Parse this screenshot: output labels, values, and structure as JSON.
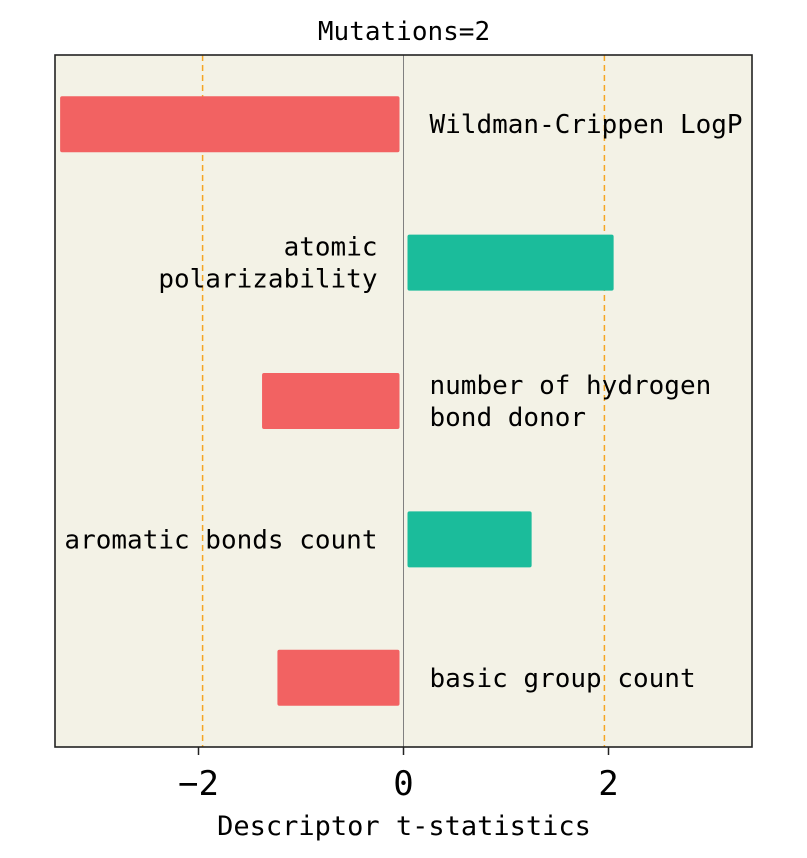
{
  "chart_data": {
    "type": "bar",
    "orientation": "horizontal",
    "title": "Mutations=2",
    "xlabel": "Descriptor t-statistics",
    "ylabel": "",
    "xlim": [
      -3.4,
      3.4
    ],
    "xticks": [
      -2,
      0,
      2
    ],
    "xtick_labels": [
      "−2",
      "0",
      "2"
    ],
    "reference_lines": [
      -1.96,
      1.96
    ],
    "grid": false,
    "categories": [
      [
        "Wildman-Crippen LogP"
      ],
      [
        "atomic",
        "polarizability"
      ],
      [
        "number of hydrogen",
        "bond donor"
      ],
      [
        "aromatic bonds count"
      ],
      [
        "basic group count"
      ]
    ],
    "values": [
      -3.35,
      2.05,
      -1.38,
      1.25,
      -1.23
    ],
    "colors": {
      "negative": "#f26262",
      "positive": "#1bbc9b",
      "background": "#f3f2e6",
      "reference_line": "#f5a623",
      "zero_line": "#808080"
    }
  }
}
